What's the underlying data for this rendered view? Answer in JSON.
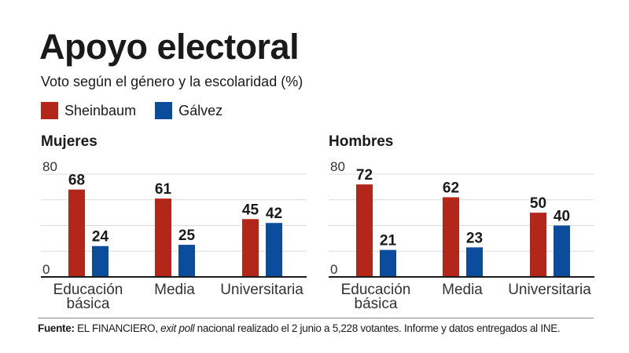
{
  "title": "Apoyo electoral",
  "subtitle": "Voto según el género y la escolaridad (%)",
  "colors": {
    "Sheinbaum": "#b3261a",
    "Gálvez": "#0b4c9c"
  },
  "footer": {
    "label": "Fuente:",
    "text_1": " EL FINANCIERO, ",
    "text_italic": "exit poll",
    "text_2": " nacional realizado el 2 junio a 5,228 votantes. Informe y datos entregados al INE."
  },
  "chart_data": [
    {
      "type": "bar",
      "title": "Mujeres",
      "categories": [
        "Educación básica",
        "Media",
        "Universitaria"
      ],
      "series": [
        {
          "name": "Sheinbaum",
          "values": [
            68,
            61,
            45
          ]
        },
        {
          "name": "Gálvez",
          "values": [
            24,
            25,
            42
          ]
        }
      ],
      "ylim": [
        0,
        80
      ],
      "yticks_labeled": [
        0,
        80
      ],
      "grid": true,
      "legend": "top-left"
    },
    {
      "type": "bar",
      "title": "Hombres",
      "categories": [
        "Educación básica",
        "Media",
        "Universitaria"
      ],
      "series": [
        {
          "name": "Sheinbaum",
          "values": [
            72,
            62,
            50
          ]
        },
        {
          "name": "Gálvez",
          "values": [
            21,
            23,
            40
          ]
        }
      ],
      "ylim": [
        0,
        80
      ],
      "yticks_labeled": [
        0,
        80
      ],
      "grid": true,
      "legend": "top-left"
    }
  ]
}
